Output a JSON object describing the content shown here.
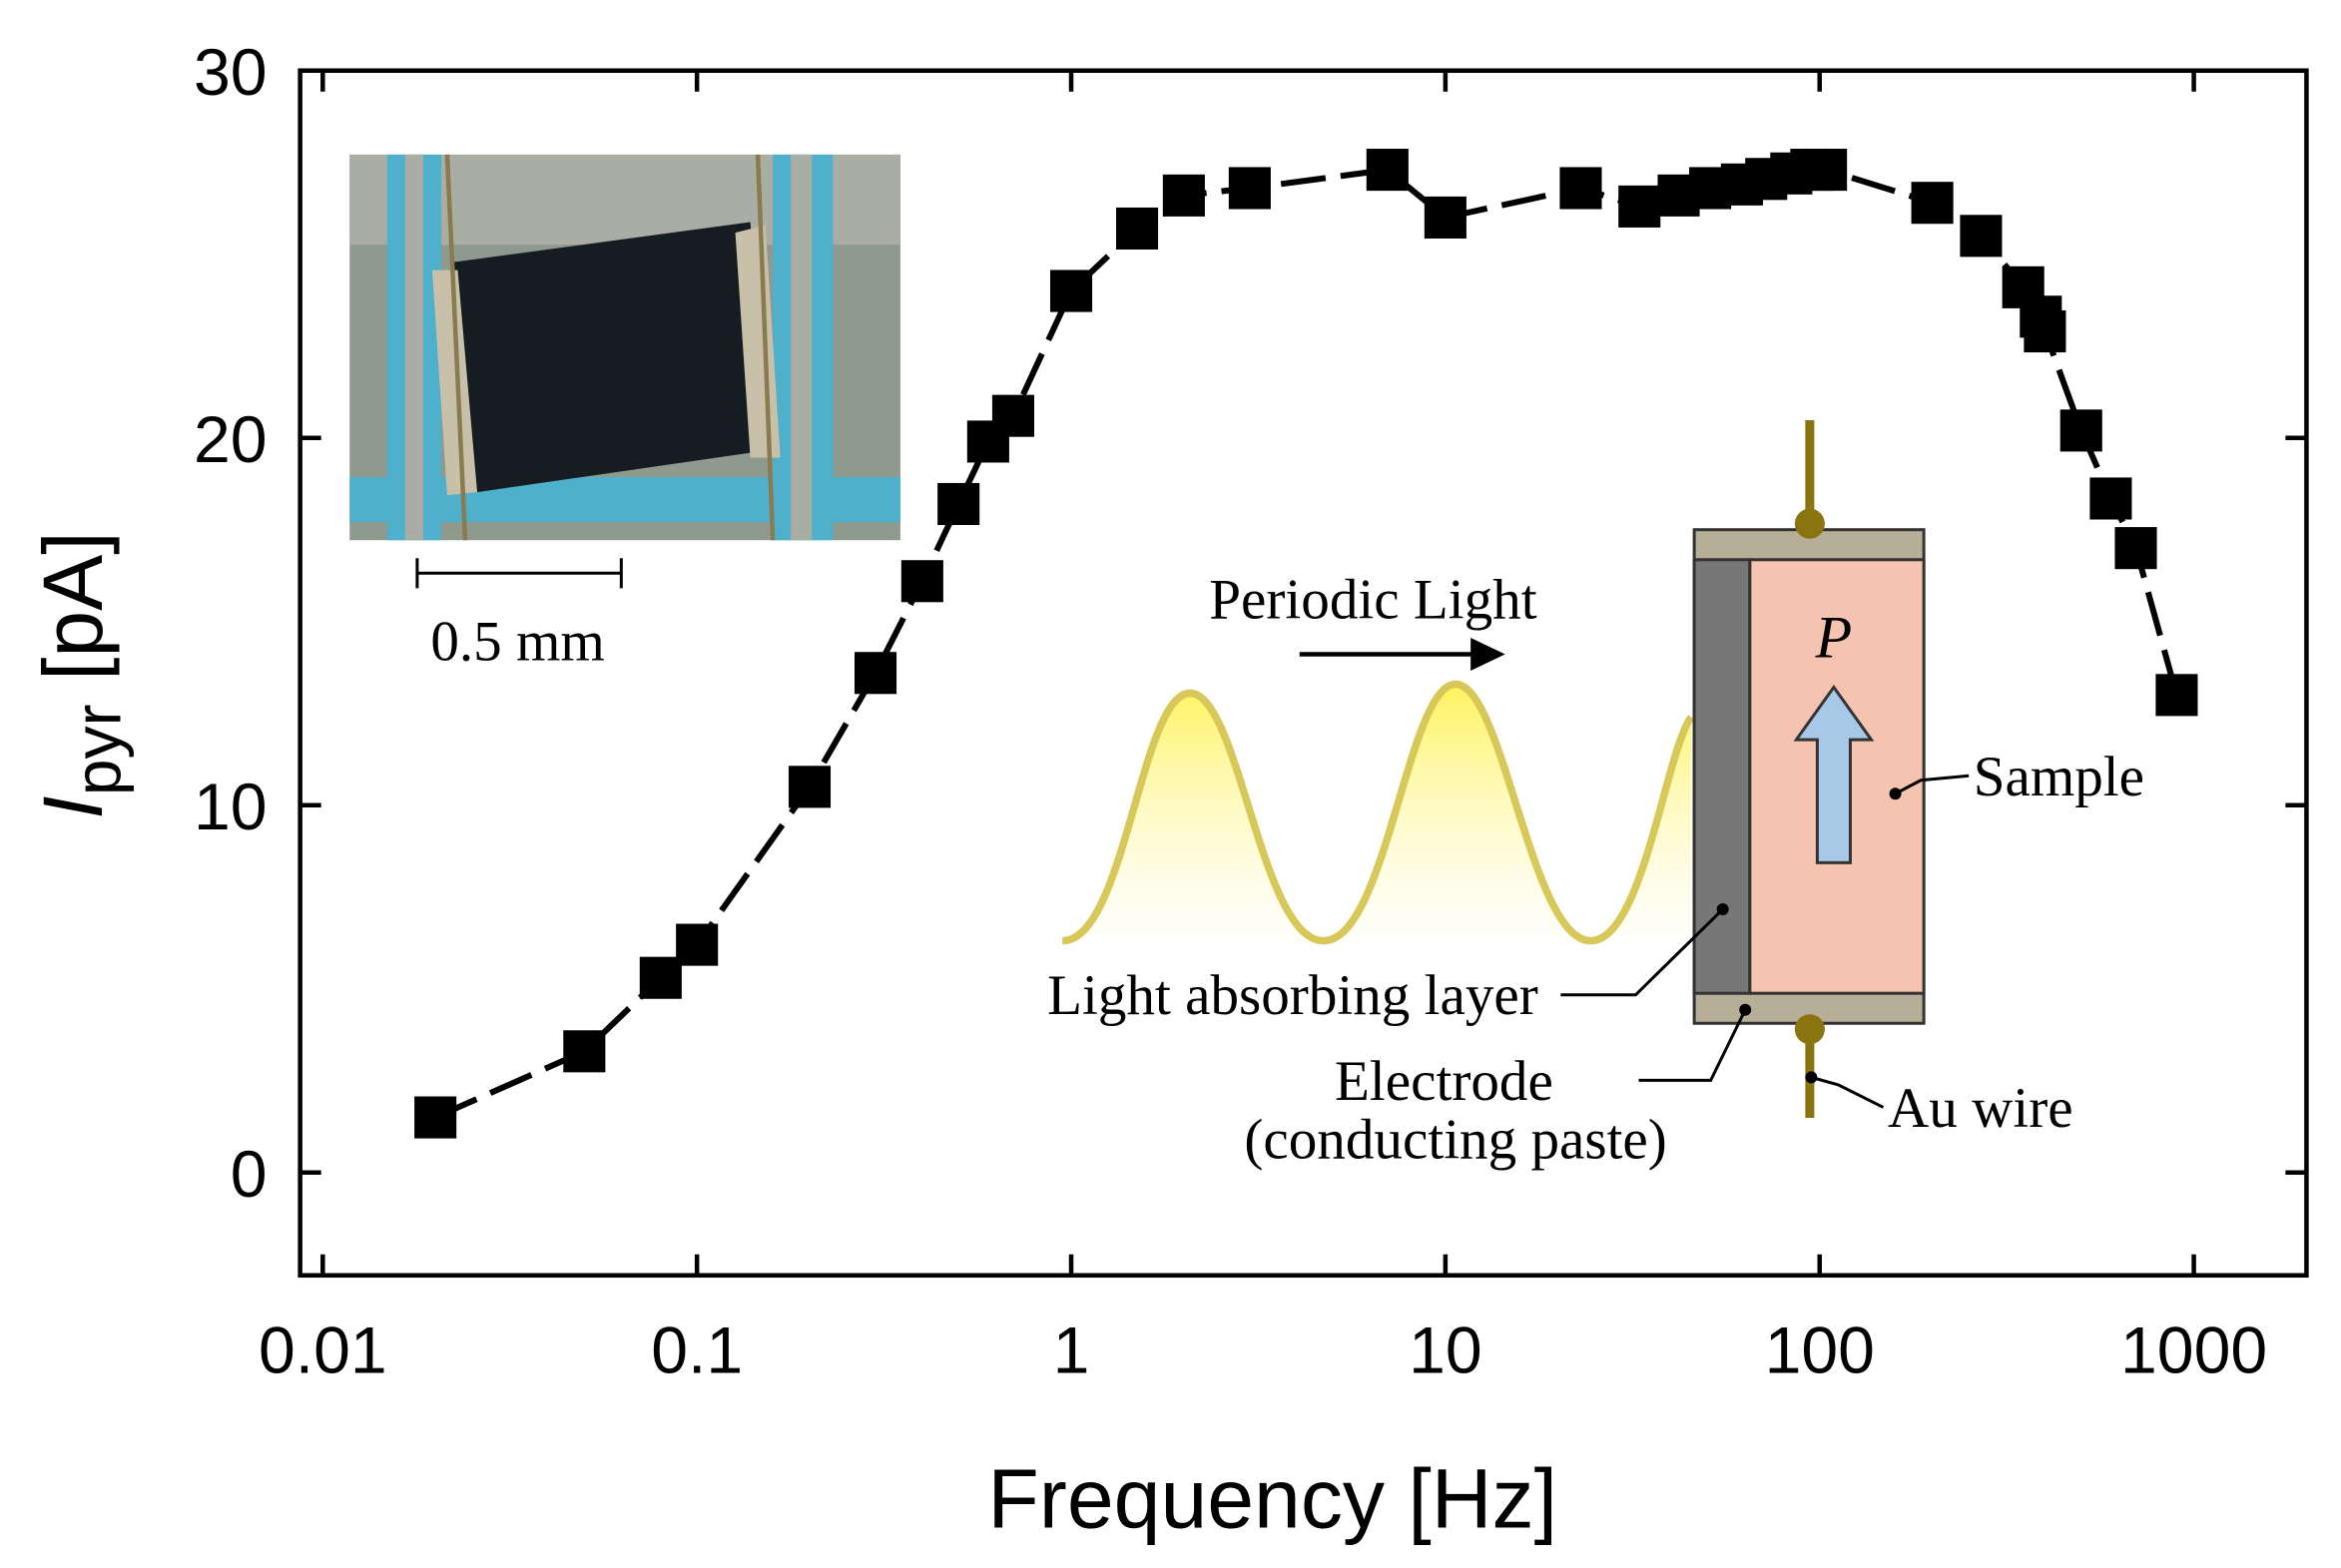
{
  "chart_data": {
    "type": "line",
    "xlabel": "Frequency [Hz]",
    "ylabel": {
      "symbol": "I",
      "subscript": "pyr",
      "unit": "[pA]"
    },
    "x": [
      0.02,
      0.05,
      0.08,
      0.1,
      0.2,
      0.3,
      0.4,
      0.5,
      0.6,
      0.7,
      1,
      1.5,
      2,
      3,
      7,
      10,
      23,
      33,
      42,
      51,
      62,
      72,
      84,
      95,
      104,
      200,
      270,
      350,
      390,
      400,
      500,
      600,
      700,
      900
    ],
    "series": [
      {
        "name": null,
        "color": "#000000",
        "values": [
          1.5,
          3.3,
          5.3,
          6.2,
          10.5,
          13.6,
          16.1,
          18.2,
          19.9,
          20.6,
          24.0,
          25.7,
          26.6,
          26.8,
          27.3,
          26.0,
          26.8,
          26.3,
          26.6,
          26.8,
          26.9,
          27.05,
          27.2,
          27.3,
          27.3,
          26.4,
          25.5,
          24.1,
          23.3,
          22.9,
          20.2,
          18.35,
          17.0,
          13.0
        ]
      }
    ],
    "xscale": "log",
    "xlim": [
      0.0087,
      2000
    ],
    "xticks": [
      0.01,
      0.1,
      1,
      10,
      100,
      1000
    ],
    "ylim": [
      -2.8,
      30
    ],
    "yticks": [
      0,
      10,
      20,
      30
    ],
    "annotations": {
      "scale_bar": "0.5 mm",
      "light": "Periodic Light",
      "polarization": "P",
      "sample": "Sample",
      "absorber": "Light absorbing layer",
      "electrode": "Electrode",
      "electrode_note": "(conducting paste)",
      "wire": "Au wire"
    }
  }
}
